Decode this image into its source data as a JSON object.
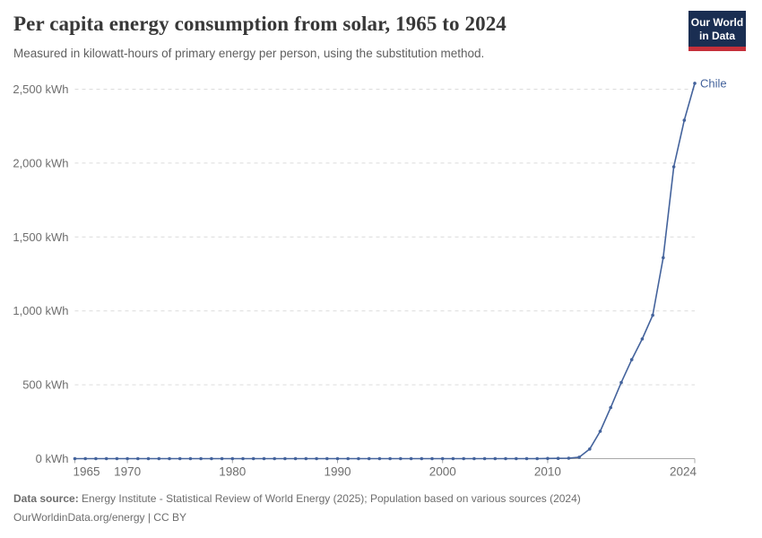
{
  "header": {
    "title": "Per capita energy consumption from solar, 1965 to 2024",
    "subtitle": "Measured in kilowatt-hours of primary energy per person, using the substitution method.",
    "logo": {
      "line1": "Our World",
      "line2": "in Data"
    }
  },
  "footer": {
    "source_label": "Data source:",
    "source_text": " Energy Institute - Statistical Review of World Energy (2025); Population based on various sources (2024)",
    "license_line": "OurWorldinData.org/energy | CC BY"
  },
  "chart_data": {
    "type": "line",
    "title": "Per capita energy consumption from solar, 1965 to 2024",
    "xlabel": "",
    "ylabel": "kWh",
    "xlim": [
      1965,
      2024
    ],
    "ylim": [
      0,
      2500
    ],
    "grid": true,
    "legend_position": "end-of-line-label",
    "x": [
      1965,
      1966,
      1967,
      1968,
      1969,
      1970,
      1971,
      1972,
      1973,
      1974,
      1975,
      1976,
      1977,
      1978,
      1979,
      1980,
      1981,
      1982,
      1983,
      1984,
      1985,
      1986,
      1987,
      1988,
      1989,
      1990,
      1991,
      1992,
      1993,
      1994,
      1995,
      1996,
      1997,
      1998,
      1999,
      2000,
      2001,
      2002,
      2003,
      2004,
      2005,
      2006,
      2007,
      2008,
      2009,
      2010,
      2011,
      2012,
      2013,
      2014,
      2015,
      2016,
      2017,
      2018,
      2019,
      2020,
      2021,
      2022,
      2023,
      2024
    ],
    "series": [
      {
        "name": "Chile",
        "values": [
          0,
          0,
          0,
          0,
          0,
          0,
          0,
          0,
          0,
          0,
          0,
          0,
          0,
          0,
          0,
          0,
          0,
          0,
          0,
          0,
          0,
          0,
          0,
          0,
          0,
          0,
          0,
          0,
          0,
          0,
          0,
          0,
          0,
          0,
          0,
          0,
          0,
          0,
          0,
          0,
          0,
          0,
          0,
          0,
          0,
          1,
          2,
          3,
          10,
          65,
          185,
          345,
          515,
          670,
          810,
          970,
          1360,
          1975,
          2290,
          2540
        ]
      }
    ],
    "y_ticks": [
      {
        "value": 0,
        "label": "0 kWh"
      },
      {
        "value": 500,
        "label": "500 kWh"
      },
      {
        "value": 1000,
        "label": "1,000 kWh"
      },
      {
        "value": 1500,
        "label": "1,500 kWh"
      },
      {
        "value": 2000,
        "label": "2,000 kWh"
      },
      {
        "value": 2500,
        "label": "2,500 kWh"
      }
    ],
    "x_ticks": [
      1965,
      1970,
      1980,
      1990,
      2000,
      2010,
      2024
    ],
    "colors": {
      "line": "#44639c",
      "grid": "#dcdcdc",
      "axis": "#a8a8a8",
      "axis_text": "#6e6e6e"
    }
  }
}
